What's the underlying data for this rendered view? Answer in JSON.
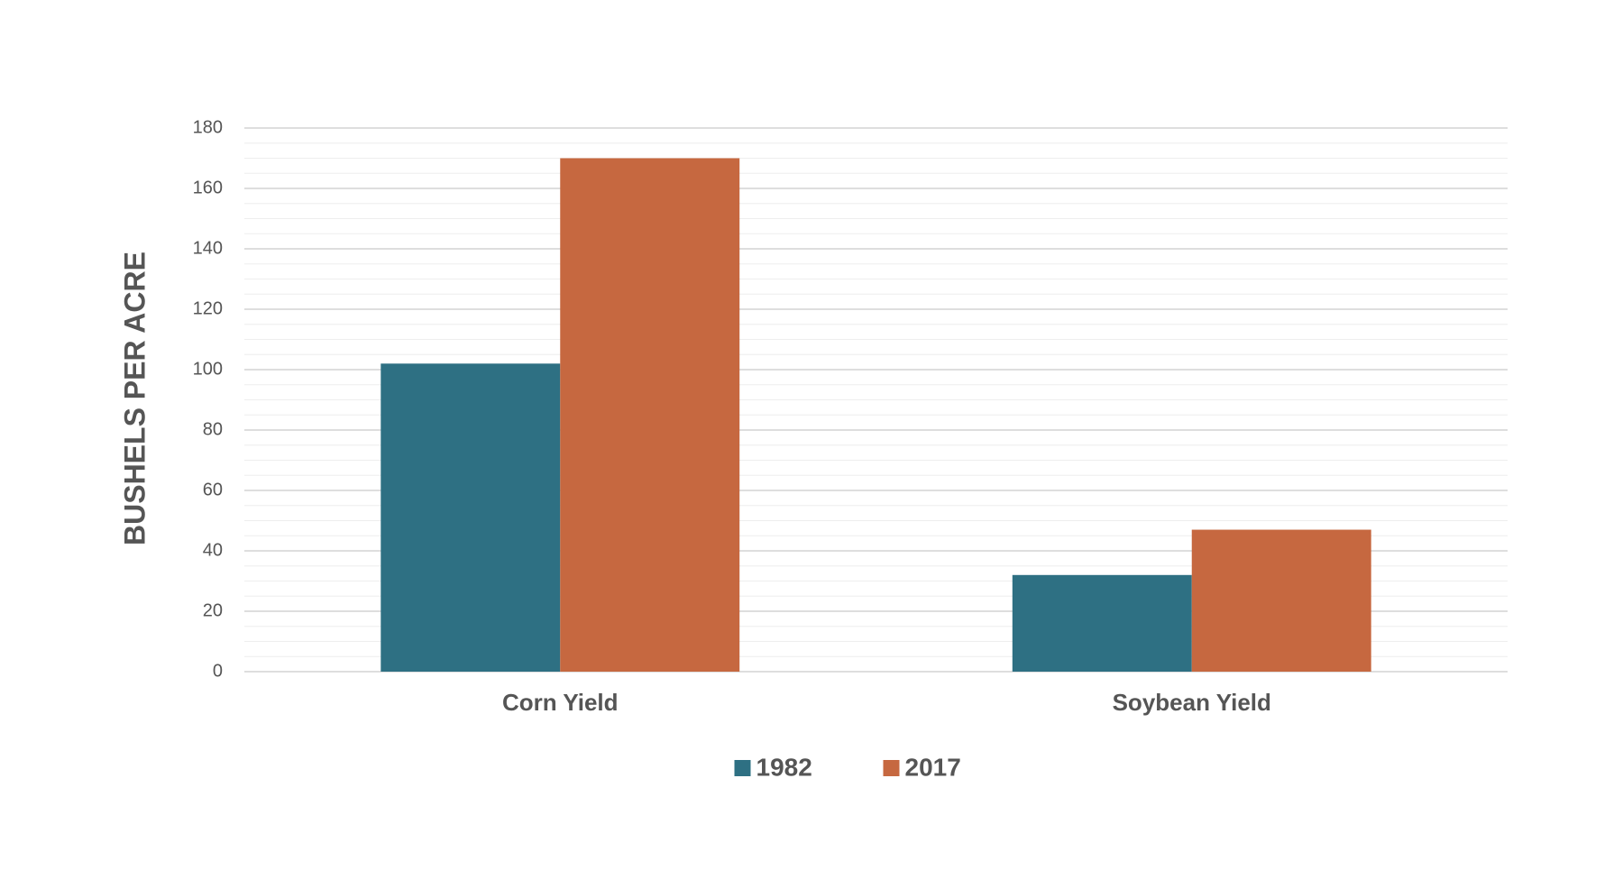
{
  "chart_data": {
    "type": "bar",
    "y_label": "BUSHELS PER ACRE",
    "categories": [
      "Corn Yield",
      "Soybean Yield"
    ],
    "series": [
      {
        "name": "1982",
        "color": "#2e7083",
        "values": [
          102,
          32
        ]
      },
      {
        "name": "2017",
        "color": "#c66840",
        "values": [
          170,
          47
        ]
      }
    ],
    "ylim": [
      0,
      180
    ],
    "yticks": [
      0,
      20,
      40,
      60,
      80,
      100,
      120,
      140,
      160,
      180
    ],
    "minor_yticks": [
      5,
      10,
      15,
      25,
      30,
      35,
      45,
      50,
      55,
      65,
      70,
      75,
      85,
      90,
      95,
      105,
      110,
      115,
      125,
      130,
      135,
      145,
      150,
      155,
      165,
      170,
      175
    ],
    "grid": true,
    "legend": "bottom"
  }
}
